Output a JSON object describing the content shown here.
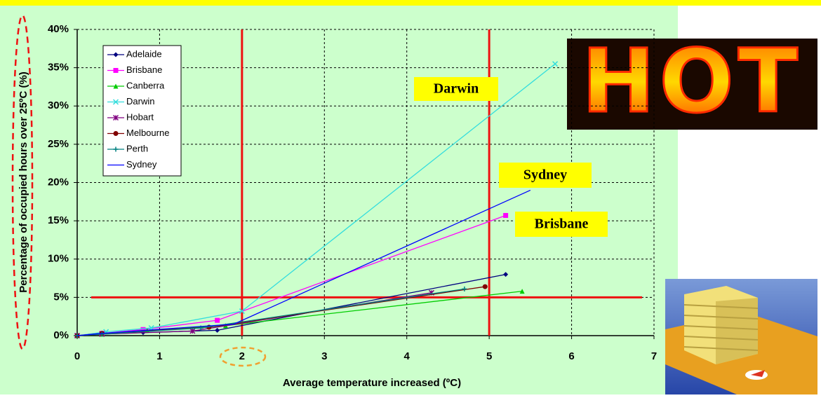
{
  "chart_data": {
    "type": "line",
    "xlabel": "Average temperature increased (ºC)",
    "ylabel": "Percentage of occupied hours over 25ºC (%)",
    "xlim": [
      0,
      7
    ],
    "xticks": [
      0,
      1,
      2,
      3,
      4,
      5,
      6,
      7
    ],
    "ylim": [
      0,
      40
    ],
    "yticks": [
      {
        "value": 0,
        "label": "0%"
      },
      {
        "value": 5,
        "label": "5%"
      },
      {
        "value": 10,
        "label": "10%"
      },
      {
        "value": 15,
        "label": "15%"
      },
      {
        "value": 20,
        "label": "20%"
      },
      {
        "value": 25,
        "label": "25%"
      },
      {
        "value": 30,
        "label": "30%"
      },
      {
        "value": 35,
        "label": "35%"
      },
      {
        "value": 40,
        "label": "40%"
      }
    ],
    "grid": true,
    "legend": "upper left",
    "series": [
      {
        "name": "Adelaide",
        "color": "#000080",
        "marker": "diamond",
        "x": [
          0,
          0.3,
          0.8,
          1.7,
          5.2
        ],
        "values": [
          0,
          0.2,
          0.4,
          0.7,
          8.0
        ]
      },
      {
        "name": "Brisbane",
        "color": "#ff00ff",
        "marker": "square",
        "x": [
          0,
          0.3,
          0.8,
          1.7,
          5.2
        ],
        "values": [
          0,
          0.3,
          0.8,
          2.0,
          15.7
        ]
      },
      {
        "name": "Canberra",
        "color": "#00cc00",
        "marker": "triangle",
        "x": [
          0,
          0.3,
          0.85,
          1.8,
          5.4
        ],
        "values": [
          0,
          0.2,
          0.7,
          1.3,
          5.8
        ]
      },
      {
        "name": "Darwin",
        "color": "#33dddd",
        "marker": "x",
        "x": [
          0,
          0.35,
          0.9,
          2.0,
          5.8
        ],
        "values": [
          0,
          0.5,
          1.0,
          3.2,
          35.5
        ]
      },
      {
        "name": "Hobart",
        "color": "#800080",
        "marker": "star",
        "x": [
          0,
          0.3,
          1.4,
          4.3
        ],
        "values": [
          0,
          0.2,
          0.6,
          5.6
        ]
      },
      {
        "name": "Melbourne",
        "color": "#800000",
        "marker": "circle",
        "x": [
          0,
          0.3,
          1.6,
          4.95
        ],
        "values": [
          0,
          0.3,
          1.1,
          6.4
        ]
      },
      {
        "name": "Perth",
        "color": "#008080",
        "marker": "plus",
        "x": [
          0,
          0.3,
          1.5,
          4.7
        ],
        "values": [
          0,
          0.2,
          1.0,
          6.1
        ]
      },
      {
        "name": "Sydney",
        "color": "#0000ff",
        "marker": "none",
        "x": [
          0,
          0.3,
          1.9,
          5.5
        ],
        "values": [
          0,
          0.3,
          1.5,
          19.0
        ]
      }
    ],
    "reference_lines": {
      "color": "#ee1111",
      "x": [
        2,
        5
      ],
      "y": [
        5
      ]
    },
    "annotations": [
      "Darwin",
      "Sydney",
      "Brisbane"
    ],
    "image_text": "HOT"
  }
}
